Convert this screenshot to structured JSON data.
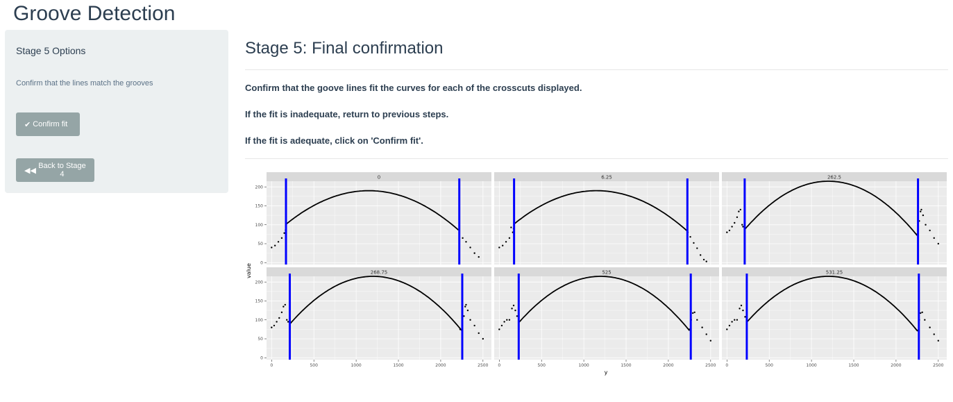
{
  "app": {
    "title": "Groove Detection"
  },
  "sidebar": {
    "title": "Stage 5 Options",
    "hint": "Confirm that the lines match the grooves",
    "confirm_button": {
      "icon": "check-icon",
      "label": "Confirm fit"
    },
    "back_button": {
      "icon": "backward-icon",
      "label": "Back to Stage 4"
    }
  },
  "main": {
    "title": "Stage 5: Final confirmation",
    "instructions": [
      "Confirm that the goove lines fit the curves for each of the crosscuts displayed.",
      "If the fit is inadequate, return to previous steps.",
      "If the fit is adequate, click on 'Confirm fit'."
    ]
  },
  "colors": {
    "sidebar_bg": "#ecf0f1",
    "button_bg": "#95a5a6",
    "groove_line": "#0000ff",
    "panel_bg": "#ebebeb",
    "strip_bg": "#d9d9d9"
  },
  "chart_data": {
    "type": "scatter",
    "xlabel": "y",
    "ylabel": "value",
    "xlim": [
      -60,
      2600
    ],
    "ylim": [
      -5,
      215
    ],
    "xticks": [
      0,
      500,
      1000,
      1500,
      2000,
      2500
    ],
    "yticks": [
      0,
      50,
      100,
      150,
      200
    ],
    "grid": true,
    "layout": "facet 2x3",
    "panels": [
      {
        "label": "0",
        "grooves": [
          170,
          2220
        ],
        "curve": {
          "apex_x": 1150,
          "apex_y": 190,
          "k": 9.25e-05,
          "x_start": 170,
          "x_end": 2220
        },
        "points": [
          [
            0,
            40
          ],
          [
            40,
            45
          ],
          [
            80,
            55
          ],
          [
            120,
            65
          ],
          [
            150,
            78
          ],
          [
            165,
            86
          ],
          [
            2220,
            80
          ],
          [
            2260,
            65
          ],
          [
            2300,
            55
          ],
          [
            2350,
            40
          ],
          [
            2400,
            25
          ],
          [
            2450,
            15
          ]
        ]
      },
      {
        "label": "6.25",
        "grooves": [
          175,
          2225
        ],
        "curve": {
          "apex_x": 1150,
          "apex_y": 190,
          "k": 9.25e-05,
          "x_start": 175,
          "x_end": 2225
        },
        "points": [
          [
            0,
            40
          ],
          [
            40,
            45
          ],
          [
            80,
            55
          ],
          [
            120,
            65
          ],
          [
            160,
            80
          ],
          [
            140,
            93
          ],
          [
            170,
            90
          ],
          [
            2230,
            80
          ],
          [
            2260,
            68
          ],
          [
            2300,
            52
          ],
          [
            2340,
            38
          ],
          [
            2380,
            20
          ],
          [
            2420,
            8
          ],
          [
            2450,
            3
          ]
        ]
      },
      {
        "label": "262.5",
        "grooves": [
          210,
          2260
        ],
        "curve": {
          "apex_x": 1200,
          "apex_y": 215,
          "k": 0.00013,
          "x_start": 210,
          "x_end": 2260
        },
        "points": [
          [
            0,
            80
          ],
          [
            30,
            85
          ],
          [
            60,
            95
          ],
          [
            90,
            105
          ],
          [
            120,
            120
          ],
          [
            140,
            135
          ],
          [
            160,
            140
          ],
          [
            180,
            100
          ],
          [
            190,
            95
          ],
          [
            2250,
            75
          ],
          [
            2275,
            110
          ],
          [
            2290,
            135
          ],
          [
            2300,
            140
          ],
          [
            2320,
            125
          ],
          [
            2350,
            100
          ],
          [
            2400,
            85
          ],
          [
            2450,
            65
          ],
          [
            2500,
            50
          ]
        ]
      },
      {
        "label": "268.75",
        "grooves": [
          215,
          2255
        ],
        "curve": {
          "apex_x": 1200,
          "apex_y": 215,
          "k": 0.00013,
          "x_start": 215,
          "x_end": 2255
        },
        "points": [
          [
            0,
            80
          ],
          [
            30,
            85
          ],
          [
            60,
            95
          ],
          [
            90,
            105
          ],
          [
            120,
            120
          ],
          [
            140,
            135
          ],
          [
            160,
            140
          ],
          [
            180,
            100
          ],
          [
            195,
            95
          ],
          [
            2230,
            75
          ],
          [
            2255,
            78
          ],
          [
            2275,
            110
          ],
          [
            2290,
            135
          ],
          [
            2300,
            140
          ],
          [
            2320,
            125
          ],
          [
            2350,
            100
          ],
          [
            2400,
            85
          ],
          [
            2450,
            65
          ],
          [
            2500,
            50
          ]
        ]
      },
      {
        "label": "525",
        "grooves": [
          230,
          2265
        ],
        "curve": {
          "apex_x": 1200,
          "apex_y": 215,
          "k": 0.00013,
          "x_start": 230,
          "x_end": 2265
        },
        "points": [
          [
            0,
            75
          ],
          [
            30,
            85
          ],
          [
            60,
            95
          ],
          [
            90,
            100
          ],
          [
            120,
            100
          ],
          [
            150,
            130
          ],
          [
            170,
            138
          ],
          [
            190,
            125
          ],
          [
            210,
            110
          ],
          [
            2250,
            75
          ],
          [
            2270,
            100
          ],
          [
            2290,
            118
          ],
          [
            2310,
            120
          ],
          [
            2340,
            100
          ],
          [
            2400,
            80
          ],
          [
            2450,
            62
          ],
          [
            2500,
            45
          ]
        ]
      },
      {
        "label": "531.25",
        "grooves": [
          235,
          2270
        ],
        "curve": {
          "apex_x": 1200,
          "apex_y": 215,
          "k": 0.00013,
          "x_start": 235,
          "x_end": 2270
        },
        "points": [
          [
            0,
            75
          ],
          [
            30,
            85
          ],
          [
            60,
            95
          ],
          [
            90,
            100
          ],
          [
            120,
            100
          ],
          [
            150,
            130
          ],
          [
            170,
            138
          ],
          [
            190,
            125
          ],
          [
            215,
            108
          ],
          [
            2255,
            72
          ],
          [
            2275,
            100
          ],
          [
            2290,
            118
          ],
          [
            2310,
            120
          ],
          [
            2340,
            100
          ],
          [
            2400,
            80
          ],
          [
            2450,
            62
          ],
          [
            2500,
            45
          ]
        ]
      }
    ]
  }
}
